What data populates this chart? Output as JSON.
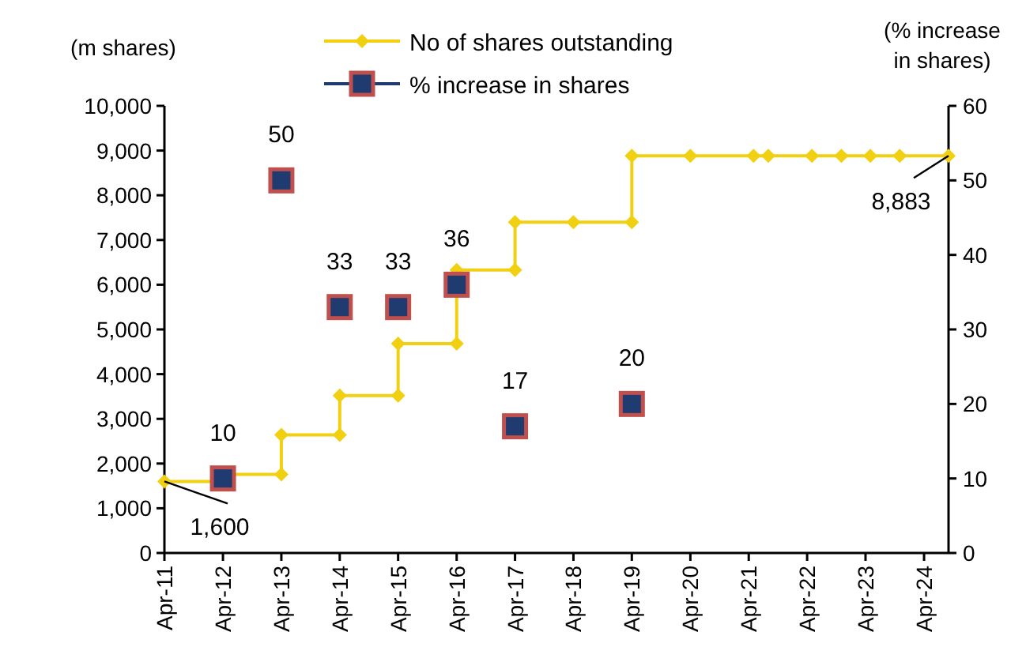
{
  "chart_data": {
    "type": "line",
    "ylabel": "(m shares)",
    "y2label": "(% increase in shares)",
    "xlim": [
      "2011-04",
      "2024-09"
    ],
    "xticks": [
      {
        "value": "2011-04",
        "label": "Apr-11"
      },
      {
        "value": "2012-04",
        "label": "Apr-12"
      },
      {
        "value": "2013-04",
        "label": "Apr-13"
      },
      {
        "value": "2014-04",
        "label": "Apr-14"
      },
      {
        "value": "2015-04",
        "label": "Apr-15"
      },
      {
        "value": "2016-04",
        "label": "Apr-16"
      },
      {
        "value": "2017-04",
        "label": "Apr-17"
      },
      {
        "value": "2018-04",
        "label": "Apr-18"
      },
      {
        "value": "2019-04",
        "label": "Apr-19"
      },
      {
        "value": "2020-04",
        "label": "Apr-20"
      },
      {
        "value": "2021-04",
        "label": "Apr-21"
      },
      {
        "value": "2022-04",
        "label": "Apr-22"
      },
      {
        "value": "2023-04",
        "label": "Apr-23"
      },
      {
        "value": "2024-04",
        "label": "Apr-24"
      }
    ],
    "ylim": [
      0,
      10000
    ],
    "yticks": [
      {
        "value": 0,
        "label": "0"
      },
      {
        "value": 1000,
        "label": "1,000"
      },
      {
        "value": 2000,
        "label": "2,000"
      },
      {
        "value": 3000,
        "label": "3,000"
      },
      {
        "value": 4000,
        "label": "4,000"
      },
      {
        "value": 5000,
        "label": "5,000"
      },
      {
        "value": 6000,
        "label": "6,000"
      },
      {
        "value": 7000,
        "label": "7,000"
      },
      {
        "value": 8000,
        "label": "8,000"
      },
      {
        "value": 9000,
        "label": "9,000"
      },
      {
        "value": 10000,
        "label": "10,000"
      }
    ],
    "y2lim": [
      0,
      60
    ],
    "y2ticks": [
      0,
      10,
      20,
      30,
      40,
      50,
      60
    ],
    "legend": "top",
    "grid": false,
    "series": [
      {
        "name": "No of shares outstanding",
        "color": "#f0d010",
        "marker": "diamond",
        "line_style": "solid",
        "x": [
          "2011-04",
          "2012-04",
          "2012-04",
          "2013-04",
          "2013-04",
          "2014-04",
          "2014-04",
          "2015-04",
          "2015-04",
          "2016-04",
          "2016-04",
          "2017-04",
          "2017-04",
          "2018-04",
          "2019-04",
          "2019-04",
          "2020-04",
          "2021-05",
          "2021-08",
          "2022-05",
          "2022-11",
          "2023-05",
          "2023-11",
          "2024-09"
        ],
        "values": [
          1600,
          1600,
          1760,
          1760,
          2640,
          2640,
          3520,
          3520,
          4680,
          4680,
          6330,
          6330,
          7400,
          7400,
          7400,
          8883,
          8883,
          8883,
          8883,
          8883,
          8883,
          8883,
          8883,
          8883
        ]
      },
      {
        "name": "% increase in shares",
        "type": "scatter",
        "axis": "y2",
        "color": "#1f3b70",
        "marker": "square",
        "data_labels": true,
        "x": [
          "2012-04",
          "2013-04",
          "2014-04",
          "2015-04",
          "2016-04",
          "2017-04",
          "2019-04"
        ],
        "values": [
          10,
          50,
          33,
          33,
          36,
          17,
          20
        ]
      }
    ],
    "annotations": [
      {
        "text": "1,600",
        "x": "2011-04",
        "y": 1600
      },
      {
        "text": "8,883",
        "x": "2024-09",
        "y": 8883
      }
    ]
  }
}
